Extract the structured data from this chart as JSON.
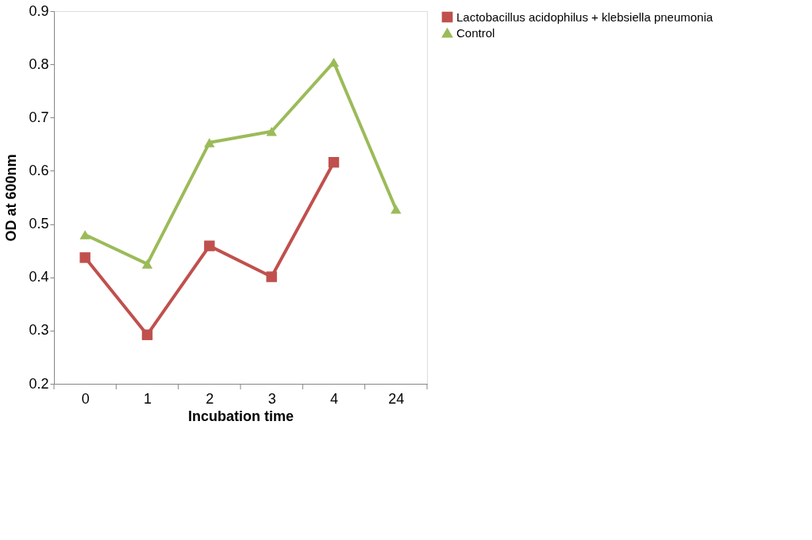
{
  "chart_data": {
    "type": "line",
    "xlabel": "Incubation time",
    "ylabel": "OD at 600nm",
    "categories": [
      "0",
      "1",
      "2",
      "3",
      "4",
      "24"
    ],
    "series": [
      {
        "name": "Lactobacillus acidophilus + klebsiella pneumonia",
        "color": "#c0504d",
        "marker": "square",
        "values": [
          0.437,
          0.292,
          0.459,
          0.401,
          0.616,
          null
        ]
      },
      {
        "name": "Control",
        "color": "#9bbb59",
        "marker": "triangle",
        "values": [
          0.48,
          0.425,
          0.653,
          0.674,
          0.804,
          0.528
        ]
      }
    ],
    "ylim": [
      0.2,
      0.9
    ],
    "yticks": [
      0.2,
      0.3,
      0.4,
      0.5,
      0.6,
      0.7,
      0.8,
      0.9
    ],
    "grid": false,
    "legend": "right",
    "line_style": "solid"
  }
}
